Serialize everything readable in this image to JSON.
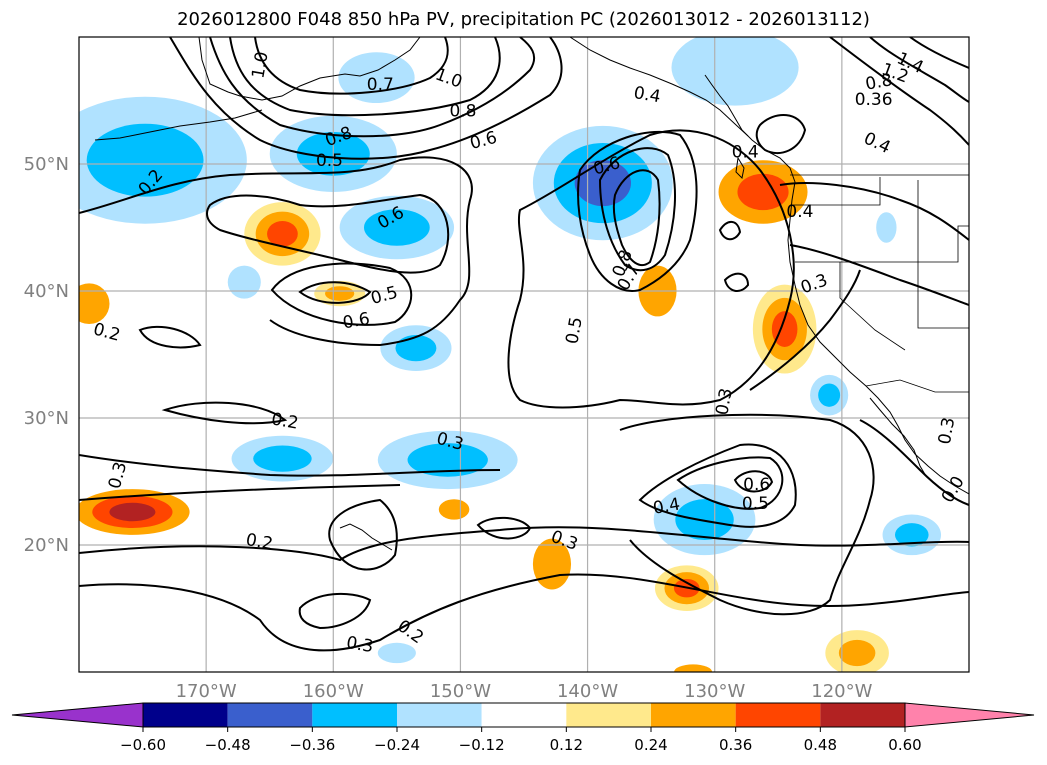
{
  "chart_data": {
    "type": "contour",
    "title": "2026012800 F048 850 hPa PV, precipitation PC (2026013012 - 2026013112)",
    "lon_range": [
      -180,
      -110
    ],
    "lat_range": [
      10,
      60
    ],
    "lon_ticks": [
      -170,
      -160,
      -150,
      -140,
      -130,
      -120
    ],
    "lon_tick_labels": [
      "170°W",
      "160°W",
      "150°W",
      "140°W",
      "130°W",
      "120°W"
    ],
    "lat_ticks": [
      20,
      30,
      40,
      50
    ],
    "lat_tick_labels": [
      "20°N",
      "30°N",
      "40°N",
      "50°N"
    ],
    "grid": true,
    "colorbar": {
      "orientation": "horizontal",
      "extend": "both",
      "levels": [
        -0.6,
        -0.48,
        -0.36,
        -0.24,
        -0.12,
        0.12,
        0.24,
        0.36,
        0.48,
        0.6
      ],
      "tick_labels": [
        "−0.60",
        "−0.48",
        "−0.36",
        "−0.24",
        "−0.12",
        "0.12",
        "0.24",
        "0.36",
        "0.48",
        "0.60"
      ],
      "colors": [
        "#9932cc",
        "#00008b",
        "#3a5fcd",
        "#00bfff",
        "#b0e2ff",
        "#ffffff",
        "#ffe98c",
        "#ffa500",
        "#ff4500",
        "#b22222",
        "#ff82ab"
      ]
    },
    "contour_labels": [
      {
        "text": "0.2",
        "lon": -174.4,
        "lat": 48.6,
        "rot": -50
      },
      {
        "text": "1.0",
        "lon": -165.8,
        "lat": 57.8,
        "rot": -80
      },
      {
        "text": "0.7",
        "lon": -156.3,
        "lat": 56.3,
        "rot": 0
      },
      {
        "text": "1.0",
        "lon": -150.9,
        "lat": 56.8,
        "rot": 20
      },
      {
        "text": "0.8",
        "lon": -149.8,
        "lat": 54.2,
        "rot": 0
      },
      {
        "text": "0.8",
        "lon": -159.6,
        "lat": 52.2,
        "rot": -20
      },
      {
        "text": "0.6",
        "lon": -148.2,
        "lat": 51.9,
        "rot": -15
      },
      {
        "text": "0.5",
        "lon": -160.3,
        "lat": 50.3,
        "rot": 0
      },
      {
        "text": "0.6",
        "lon": -155.5,
        "lat": 45.8,
        "rot": -30
      },
      {
        "text": "0.6",
        "lon": -138.5,
        "lat": 49.9,
        "rot": -15
      },
      {
        "text": "0.5",
        "lon": -156.0,
        "lat": 39.7,
        "rot": -15
      },
      {
        "text": "0.6",
        "lon": -158.2,
        "lat": 37.7,
        "rot": -10
      },
      {
        "text": "0.5",
        "lon": -141.1,
        "lat": 36.9,
        "rot": -80
      },
      {
        "text": "0.8",
        "lon": -137.3,
        "lat": 42.2,
        "rot": -70
      },
      {
        "text": "0.7",
        "lon": -136.8,
        "lat": 41.1,
        "rot": -60
      },
      {
        "text": "0.4",
        "lon": -135.3,
        "lat": 55.5,
        "rot": 10
      },
      {
        "text": "0.4",
        "lon": -127.6,
        "lat": 51.0,
        "rot": 0
      },
      {
        "text": "0.4",
        "lon": -123.3,
        "lat": 46.3,
        "rot": 0
      },
      {
        "text": "0.3",
        "lon": -122.2,
        "lat": 40.6,
        "rot": -20
      },
      {
        "text": "0.3",
        "lon": -129.3,
        "lat": 31.3,
        "rot": -80
      },
      {
        "text": "0.3",
        "lon": -111.8,
        "lat": 29.0,
        "rot": -80
      },
      {
        "text": "0.2",
        "lon": -177.8,
        "lat": 36.8,
        "rot": 15
      },
      {
        "text": "0.2",
        "lon": -163.8,
        "lat": 29.8,
        "rot": 10
      },
      {
        "text": "0.3",
        "lon": -177.0,
        "lat": 25.5,
        "rot": -75
      },
      {
        "text": "0.3",
        "lon": -150.8,
        "lat": 28.2,
        "rot": 15
      },
      {
        "text": "0.2",
        "lon": -165.8,
        "lat": 20.3,
        "rot": 10
      },
      {
        "text": "0.3",
        "lon": -141.8,
        "lat": 20.4,
        "rot": 20
      },
      {
        "text": "0.3",
        "lon": -157.9,
        "lat": 12.2,
        "rot": 10
      },
      {
        "text": "0.2",
        "lon": -153.9,
        "lat": 13.2,
        "rot": 35
      },
      {
        "text": "0.4",
        "lon": -133.8,
        "lat": 23.1,
        "rot": -10
      },
      {
        "text": "0.6",
        "lon": -126.7,
        "lat": 24.8,
        "rot": 0
      },
      {
        "text": "0.5",
        "lon": -126.8,
        "lat": 23.3,
        "rot": 0
      },
      {
        "text": "1.4",
        "lon": -114.6,
        "lat": 58.0,
        "rot": 25
      },
      {
        "text": "1.2",
        "lon": -115.8,
        "lat": 57.2,
        "rot": 20
      },
      {
        "text": "0.8",
        "lon": -117.1,
        "lat": 56.5,
        "rot": -10
      },
      {
        "text": "0.36",
        "lon": -117.5,
        "lat": 55.1,
        "rot": 0
      },
      {
        "text": "0.4",
        "lon": -117.2,
        "lat": 51.7,
        "rot": 25
      },
      {
        "text": "0.0",
        "lon": -111.3,
        "lat": 24.4,
        "rot": -60
      }
    ],
    "precip_blobs": [
      {
        "lon": -174.8,
        "lat": 50.3,
        "rx": 8,
        "ry": 5,
        "levels": [
          -0.24,
          -0.36
        ]
      },
      {
        "lon": -160.0,
        "lat": 50.8,
        "rx": 5,
        "ry": 3,
        "levels": [
          -0.24,
          -0.36
        ]
      },
      {
        "lon": -156.6,
        "lat": 56.8,
        "rx": 3,
        "ry": 2,
        "levels": [
          -0.24
        ]
      },
      {
        "lon": -164.0,
        "lat": 44.5,
        "rx": 3,
        "ry": 2.5,
        "levels": [
          0.12,
          0.24,
          0.36
        ]
      },
      {
        "lon": -155.0,
        "lat": 45.0,
        "rx": 4.5,
        "ry": 2.5,
        "levels": [
          -0.24,
          -0.36
        ]
      },
      {
        "lon": -167.0,
        "lat": 40.7,
        "rx": 1.3,
        "ry": 1.3,
        "levels": [
          -0.24
        ]
      },
      {
        "lon": -159.5,
        "lat": 39.8,
        "rx": 2,
        "ry": 1,
        "levels": [
          0.12,
          0.24
        ]
      },
      {
        "lon": -153.5,
        "lat": 35.5,
        "rx": 2.8,
        "ry": 1.8,
        "levels": [
          -0.24,
          -0.36
        ]
      },
      {
        "lon": -179.2,
        "lat": 39.0,
        "rx": 1.6,
        "ry": 1.6,
        "levels": [
          0.24
        ]
      },
      {
        "lon": -138.8,
        "lat": 48.5,
        "rx": 5.5,
        "ry": 4.5,
        "levels": [
          -0.24,
          -0.36,
          -0.48
        ]
      },
      {
        "lon": -128.4,
        "lat": 57.6,
        "rx": 5,
        "ry": 3,
        "levels": [
          -0.24
        ]
      },
      {
        "lon": -126.2,
        "lat": 47.8,
        "rx": 3.5,
        "ry": 2.5,
        "levels": [
          0.24,
          0.36
        ]
      },
      {
        "lon": -134.5,
        "lat": 40.0,
        "rx": 1.5,
        "ry": 2,
        "levels": [
          0.24
        ]
      },
      {
        "lon": -124.5,
        "lat": 37.0,
        "rx": 2.5,
        "ry": 3.5,
        "levels": [
          0.12,
          0.24,
          0.36
        ]
      },
      {
        "lon": -121.0,
        "lat": 31.8,
        "rx": 1.5,
        "ry": 1.6,
        "levels": [
          -0.24,
          -0.36
        ]
      },
      {
        "lon": -116.5,
        "lat": 45.0,
        "rx": 0.8,
        "ry": 1.2,
        "levels": [
          -0.24
        ]
      },
      {
        "lon": -164.0,
        "lat": 26.8,
        "rx": 4,
        "ry": 1.8,
        "levels": [
          -0.24,
          -0.36
        ]
      },
      {
        "lon": -151.0,
        "lat": 26.7,
        "rx": 5.5,
        "ry": 2.3,
        "levels": [
          -0.24,
          -0.36
        ]
      },
      {
        "lon": -175.8,
        "lat": 22.6,
        "rx": 4.5,
        "ry": 1.8,
        "levels": [
          0.24,
          0.36,
          0.48
        ]
      },
      {
        "lon": -150.5,
        "lat": 22.8,
        "rx": 1.2,
        "ry": 0.8,
        "levels": [
          0.24
        ]
      },
      {
        "lon": -130.8,
        "lat": 22.0,
        "rx": 4,
        "ry": 2.8,
        "levels": [
          -0.24,
          -0.36
        ]
      },
      {
        "lon": -142.8,
        "lat": 18.5,
        "rx": 1.5,
        "ry": 2,
        "levels": [
          0.24
        ]
      },
      {
        "lon": -132.2,
        "lat": 16.6,
        "rx": 2.5,
        "ry": 1.8,
        "levels": [
          0.12,
          0.24,
          0.36
        ]
      },
      {
        "lon": -114.5,
        "lat": 20.8,
        "rx": 2.3,
        "ry": 1.6,
        "levels": [
          -0.24,
          -0.36
        ]
      },
      {
        "lon": -155.0,
        "lat": 11.5,
        "rx": 1.5,
        "ry": 0.8,
        "levels": [
          -0.24
        ]
      },
      {
        "lon": -118.8,
        "lat": 11.5,
        "rx": 2.5,
        "ry": 1.8,
        "levels": [
          0.12,
          0.24
        ]
      },
      {
        "lon": -131.7,
        "lat": 10.0,
        "rx": 1.5,
        "ry": 0.6,
        "levels": [
          0.24
        ]
      }
    ]
  }
}
